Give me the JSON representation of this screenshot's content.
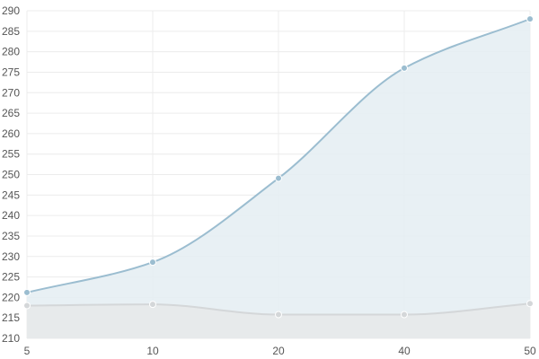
{
  "chart_data": {
    "type": "area",
    "title": "",
    "xlabel": "",
    "ylabel": "",
    "categories": [
      "5",
      "10",
      "20",
      "40",
      "50"
    ],
    "ylim": [
      210,
      290
    ],
    "yticks": [
      210,
      215,
      220,
      225,
      230,
      235,
      240,
      245,
      250,
      255,
      260,
      265,
      270,
      275,
      280,
      285,
      290
    ],
    "grid": true,
    "legend": "none",
    "series": [
      {
        "values": [
          221.2,
          228.6,
          249.1,
          276.0,
          288.0
        ],
        "color": "#9bbdd0",
        "fill": "#e5eef3"
      },
      {
        "values": [
          218.0,
          218.3,
          215.8,
          215.8,
          218.5
        ],
        "color": "#d4d7d9",
        "fill": "#e7e9ea"
      }
    ]
  }
}
